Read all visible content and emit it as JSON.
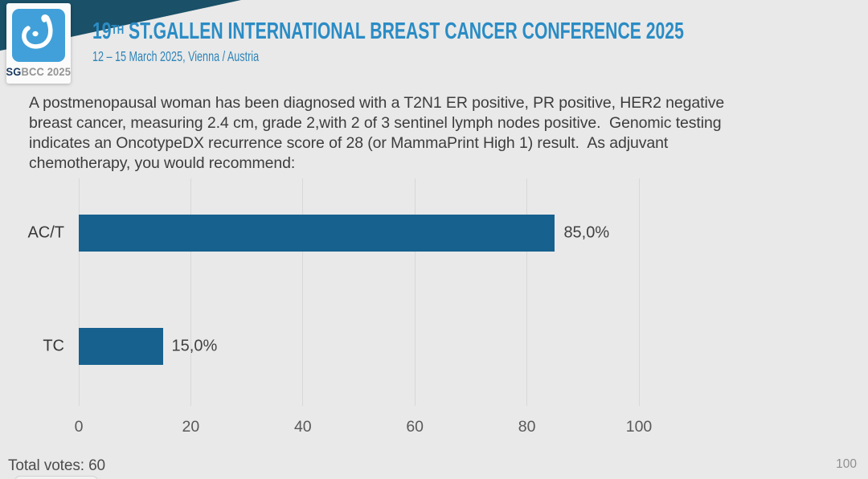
{
  "header": {
    "title_num": "19",
    "title_sup": "TH",
    "title_rest": " ST.GALLEN INTERNATIONAL BREAST CANCER CONFERENCE 2025",
    "subtitle": "12 – 15 March 2025, Vienna / Austria",
    "logo": {
      "text_bold": "SG",
      "text_rest": "BCC 2025"
    },
    "accent_dark": "#1a5068",
    "accent_blue": "#2a8cc5",
    "logo_blue": "#41a0d9"
  },
  "question": {
    "lines": [
      "A postmenopausal woman has been diagnosed with a T2N1 ER positive, PR positive, HER2 negative",
      "breast cancer, measuring 2.4 cm, grade 2,with 2 of 3 sentinel lymph nodes positive.  Genomic testing",
      "indicates an OncotypeDX recurrence score of 28 (or MammaPrint High 1) result.  As adjuvant",
      "chemotherapy, you would recommend:"
    ]
  },
  "chart_data": {
    "type": "bar",
    "orientation": "horizontal",
    "title": "",
    "categories": [
      "AC/T",
      "TC"
    ],
    "values": [
      85.0,
      15.0
    ],
    "value_labels": [
      "85,0%",
      "15,0%"
    ],
    "xlim": [
      0,
      100
    ],
    "xticks": [
      0,
      20,
      40,
      60,
      80,
      100
    ],
    "xtick_labels": [
      "0",
      "20",
      "40",
      "60",
      "80",
      "100"
    ],
    "grid": true,
    "legend": false,
    "bar_color": "#17618f",
    "grid_color": "#d8d8d8"
  },
  "footer": {
    "total_votes": "Total votes: 60",
    "page_number": "100"
  }
}
